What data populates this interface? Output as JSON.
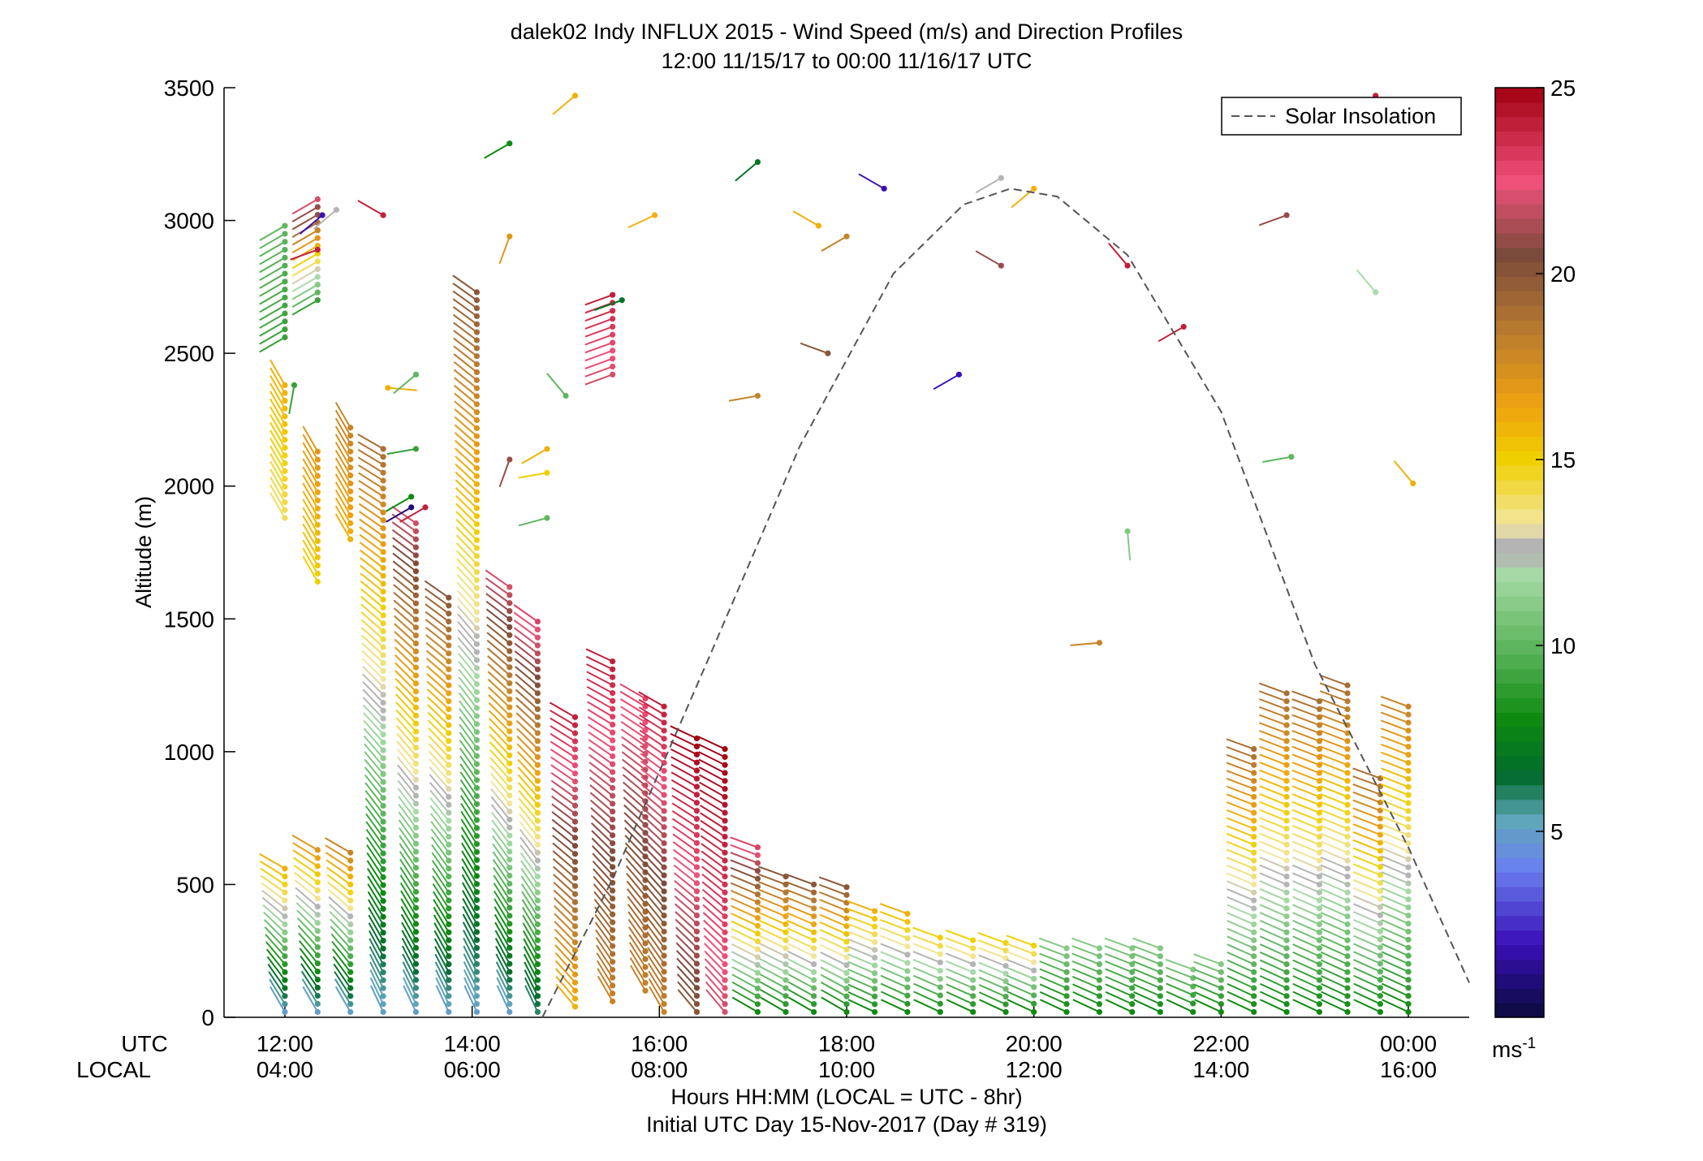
{
  "chart_data": {
    "type": "wind-profile-scatter",
    "title": "dalek02 Indy INFLUX 2015 - Wind Speed (m/s) and Direction Profiles",
    "subtitle": "12:00 11/15/17 to 00:00 11/16/17  UTC",
    "ylabel": "Altitude (m)",
    "xlabel_line1": "Hours HH:MM  (LOCAL = UTC - 8hr)",
    "xlabel_line2": "Initial UTC Day 15-Nov-2017 (Day # 319)",
    "row_label_utc": "UTC",
    "row_label_local": "LOCAL",
    "xlim_hours_utc": [
      11.35,
      24.65
    ],
    "ylim": [
      0,
      3500
    ],
    "y_ticks": [
      "0",
      "500",
      "1000",
      "1500",
      "2000",
      "2500",
      "3000",
      "3500"
    ],
    "x_ticks": [
      {
        "hour": 12,
        "utc": "12:00",
        "local": "04:00"
      },
      {
        "hour": 14,
        "utc": "14:00",
        "local": "06:00"
      },
      {
        "hour": 16,
        "utc": "16:00",
        "local": "08:00"
      },
      {
        "hour": 18,
        "utc": "18:00",
        "local": "10:00"
      },
      {
        "hour": 20,
        "utc": "20:00",
        "local": "12:00"
      },
      {
        "hour": 22,
        "utc": "22:00",
        "local": "14:00"
      },
      {
        "hour": 24,
        "utc": "00:00",
        "local": "16:00"
      }
    ],
    "legend": {
      "label": "Solar Insolation",
      "position": "top-right",
      "style": "dashed",
      "color": "#555555"
    },
    "solar_insolation": {
      "x_hours": [
        14.75,
        15.5,
        16.5,
        17.5,
        18.5,
        19.25,
        19.75,
        20.25,
        21.0,
        22.0,
        23.0,
        24.0,
        24.65
      ],
      "altitude": [
        0,
        520,
        1330,
        2150,
        2800,
        3060,
        3120,
        3090,
        2870,
        2280,
        1330,
        640,
        130
      ]
    },
    "colorbar": {
      "min": 0,
      "max": 25,
      "ticks": [
        "5",
        "10",
        "15",
        "20",
        "25"
      ],
      "unit": "ms-1",
      "unit_base": "ms",
      "unit_exp": "-1",
      "stops": [
        {
          "v": 0,
          "c": "#0a0a3c"
        },
        {
          "v": 2,
          "c": "#3a10b8"
        },
        {
          "v": 4,
          "c": "#6a80f0"
        },
        {
          "v": 5.3,
          "c": "#5fa7ba"
        },
        {
          "v": 6.5,
          "c": "#006b2e"
        },
        {
          "v": 8,
          "c": "#0e8a10"
        },
        {
          "v": 10,
          "c": "#5fb65f"
        },
        {
          "v": 12,
          "c": "#a9dba9"
        },
        {
          "v": 12.4,
          "c": "#b4b4b4"
        },
        {
          "v": 12.8,
          "c": "#b4b4b4"
        },
        {
          "v": 13.2,
          "c": "#f3e7a3"
        },
        {
          "v": 15,
          "c": "#f0d000"
        },
        {
          "v": 16.5,
          "c": "#eea110"
        },
        {
          "v": 18.5,
          "c": "#b87a30"
        },
        {
          "v": 20.5,
          "c": "#7a4a3a"
        },
        {
          "v": 22.5,
          "c": "#f0507a"
        },
        {
          "v": 25,
          "c": "#a00010"
        }
      ]
    },
    "series": [
      {
        "t": 12.0,
        "bottom": 20,
        "top": 560,
        "spd_lo": 5,
        "spd_hi": 16,
        "dir_lo": 330,
        "dir_hi": 300
      },
      {
        "t": 12.0,
        "bottom": 1880,
        "top": 2380,
        "spd_lo": 14,
        "spd_hi": 16,
        "dir_lo": 330,
        "dir_hi": 330
      },
      {
        "t": 12.0,
        "bottom": 2560,
        "top": 2980,
        "spd_lo": 9,
        "spd_hi": 10,
        "dir_lo": 240,
        "dir_hi": 240
      },
      {
        "t": 12.35,
        "bottom": 20,
        "top": 630,
        "spd_lo": 5,
        "spd_hi": 17,
        "dir_lo": 330,
        "dir_hi": 300
      },
      {
        "t": 12.35,
        "bottom": 1640,
        "top": 2130,
        "spd_lo": 15,
        "spd_hi": 17,
        "dir_lo": 330,
        "dir_hi": 330
      },
      {
        "t": 12.35,
        "bottom": 2700,
        "top": 3080,
        "spd_lo": 9,
        "spd_hi": 22,
        "dir_lo": 240,
        "dir_hi": 240
      },
      {
        "t": 12.7,
        "bottom": 20,
        "top": 620,
        "spd_lo": 5,
        "spd_hi": 18,
        "dir_lo": 330,
        "dir_hi": 300
      },
      {
        "t": 12.7,
        "bottom": 1800,
        "top": 2220,
        "spd_lo": 16,
        "spd_hi": 18,
        "dir_lo": 330,
        "dir_hi": 330
      },
      {
        "t": 13.05,
        "bottom": 20,
        "top": 2140,
        "spd_lo": 5,
        "spd_hi": 19,
        "dir_lo": 335,
        "dir_hi": 300
      },
      {
        "t": 13.4,
        "bottom": 20,
        "top": 1860,
        "spd_lo": 5,
        "spd_hi": 22,
        "dir_lo": 335,
        "dir_hi": 305
      },
      {
        "t": 13.75,
        "bottom": 20,
        "top": 1580,
        "spd_lo": 5,
        "spd_hi": 20,
        "dir_lo": 335,
        "dir_hi": 305
      },
      {
        "t": 14.05,
        "bottom": 20,
        "top": 2730,
        "spd_lo": 5,
        "spd_hi": 20,
        "dir_lo": 335,
        "dir_hi": 305
      },
      {
        "t": 14.4,
        "bottom": 20,
        "top": 1620,
        "spd_lo": 5,
        "spd_hi": 22,
        "dir_lo": 335,
        "dir_hi": 305
      },
      {
        "t": 14.7,
        "bottom": 20,
        "top": 1490,
        "spd_lo": 6,
        "spd_hi": 23,
        "dir_lo": 335,
        "dir_hi": 305
      },
      {
        "t": 15.1,
        "bottom": 40,
        "top": 1130,
        "spd_lo": 16,
        "spd_hi": 24,
        "dir_lo": 320,
        "dir_hi": 300
      },
      {
        "t": 15.5,
        "bottom": 60,
        "top": 1340,
        "spd_lo": 18,
        "spd_hi": 24,
        "dir_lo": 330,
        "dir_hi": 295
      },
      {
        "t": 15.5,
        "bottom": 2420,
        "top": 2720,
        "spd_lo": 22,
        "spd_hi": 24,
        "dir_lo": 250,
        "dir_hi": 250
      },
      {
        "t": 15.85,
        "bottom": 100,
        "top": 1200,
        "spd_lo": 18,
        "spd_hi": 23,
        "dir_lo": 330,
        "dir_hi": 300
      },
      {
        "t": 16.05,
        "bottom": 20,
        "top": 1170,
        "spd_lo": 18,
        "spd_hi": 24,
        "dir_lo": 330,
        "dir_hi": 300
      },
      {
        "t": 16.4,
        "bottom": 20,
        "top": 1050,
        "spd_lo": 20,
        "spd_hi": 25,
        "dir_lo": 320,
        "dir_hi": 295
      },
      {
        "t": 16.7,
        "bottom": 20,
        "top": 1010,
        "spd_lo": 22,
        "spd_hi": 25,
        "dir_lo": 320,
        "dir_hi": 295
      },
      {
        "t": 17.05,
        "bottom": 20,
        "top": 640,
        "spd_lo": 8,
        "spd_hi": 23,
        "dir_lo": 300,
        "dir_hi": 290
      },
      {
        "t": 17.35,
        "bottom": 20,
        "top": 530,
        "spd_lo": 8,
        "spd_hi": 20,
        "dir_lo": 300,
        "dir_hi": 290
      },
      {
        "t": 17.65,
        "bottom": 20,
        "top": 500,
        "spd_lo": 8,
        "spd_hi": 20,
        "dir_lo": 300,
        "dir_hi": 290
      },
      {
        "t": 18.0,
        "bottom": 20,
        "top": 490,
        "spd_lo": 8,
        "spd_hi": 20,
        "dir_lo": 300,
        "dir_hi": 290
      },
      {
        "t": 18.3,
        "bottom": 20,
        "top": 400,
        "spd_lo": 8,
        "spd_hi": 16,
        "dir_lo": 295,
        "dir_hi": 290
      },
      {
        "t": 18.65,
        "bottom": 20,
        "top": 390,
        "spd_lo": 8,
        "spd_hi": 16,
        "dir_lo": 295,
        "dir_hi": 290
      },
      {
        "t": 19.0,
        "bottom": 20,
        "top": 300,
        "spd_lo": 8,
        "spd_hi": 15,
        "dir_lo": 295,
        "dir_hi": 290
      },
      {
        "t": 19.35,
        "bottom": 20,
        "top": 290,
        "spd_lo": 8,
        "spd_hi": 15,
        "dir_lo": 295,
        "dir_hi": 290
      },
      {
        "t": 19.7,
        "bottom": 20,
        "top": 280,
        "spd_lo": 8,
        "spd_hi": 15,
        "dir_lo": 295,
        "dir_hi": 290
      },
      {
        "t": 20.0,
        "bottom": 20,
        "top": 270,
        "spd_lo": 8,
        "spd_hi": 15,
        "dir_lo": 295,
        "dir_hi": 290
      },
      {
        "t": 20.35,
        "bottom": 20,
        "top": 260,
        "spd_lo": 8,
        "spd_hi": 11,
        "dir_lo": 295,
        "dir_hi": 290
      },
      {
        "t": 20.7,
        "bottom": 20,
        "top": 260,
        "spd_lo": 8,
        "spd_hi": 11,
        "dir_lo": 295,
        "dir_hi": 290
      },
      {
        "t": 21.05,
        "bottom": 20,
        "top": 260,
        "spd_lo": 8,
        "spd_hi": 11,
        "dir_lo": 295,
        "dir_hi": 290
      },
      {
        "t": 21.35,
        "bottom": 20,
        "top": 260,
        "spd_lo": 8,
        "spd_hi": 11,
        "dir_lo": 295,
        "dir_hi": 290
      },
      {
        "t": 21.7,
        "bottom": 20,
        "top": 180,
        "spd_lo": 8,
        "spd_hi": 11,
        "dir_lo": 295,
        "dir_hi": 290
      },
      {
        "t": 22.0,
        "bottom": 20,
        "top": 200,
        "spd_lo": 8,
        "spd_hi": 11,
        "dir_lo": 295,
        "dir_hi": 290
      },
      {
        "t": 22.35,
        "bottom": 20,
        "top": 1010,
        "spd_lo": 8,
        "spd_hi": 19,
        "dir_lo": 295,
        "dir_hi": 290
      },
      {
        "t": 22.7,
        "bottom": 20,
        "top": 1220,
        "spd_lo": 8,
        "spd_hi": 19,
        "dir_lo": 295,
        "dir_hi": 290
      },
      {
        "t": 23.05,
        "bottom": 20,
        "top": 1190,
        "spd_lo": 8,
        "spd_hi": 19,
        "dir_lo": 295,
        "dir_hi": 290
      },
      {
        "t": 23.35,
        "bottom": 20,
        "top": 1250,
        "spd_lo": 8,
        "spd_hi": 19,
        "dir_lo": 295,
        "dir_hi": 290
      },
      {
        "t": 23.7,
        "bottom": 20,
        "top": 900,
        "spd_lo": 8,
        "spd_hi": 19,
        "dir_lo": 295,
        "dir_hi": 290
      },
      {
        "t": 24.0,
        "bottom": 20,
        "top": 1170,
        "spd_lo": 8,
        "spd_hi": 18,
        "dir_lo": 295,
        "dir_hi": 290
      }
    ],
    "scattered": [
      {
        "t": 12.1,
        "alt": 2380,
        "spd": 9,
        "dir": 190
      },
      {
        "t": 12.35,
        "alt": 2890,
        "spd": 24,
        "dir": 250
      },
      {
        "t": 12.4,
        "alt": 3020,
        "spd": 2,
        "dir": 230
      },
      {
        "t": 12.55,
        "alt": 3040,
        "spd": 12.5,
        "dir": 230
      },
      {
        "t": 13.05,
        "alt": 3020,
        "spd": 24,
        "dir": 300
      },
      {
        "t": 13.1,
        "alt": 2370,
        "spd": 16,
        "dir": 95
      },
      {
        "t": 13.4,
        "alt": 2420,
        "spd": 10,
        "dir": 230
      },
      {
        "t": 13.4,
        "alt": 2140,
        "spd": 9,
        "dir": 260
      },
      {
        "t": 13.35,
        "alt": 1920,
        "spd": 1,
        "dir": 240
      },
      {
        "t": 13.35,
        "alt": 1960,
        "spd": 8,
        "dir": 240
      },
      {
        "t": 13.5,
        "alt": 1920,
        "spd": 24,
        "dir": 240
      },
      {
        "t": 14.4,
        "alt": 3290,
        "spd": 8,
        "dir": 240
      },
      {
        "t": 14.4,
        "alt": 2940,
        "spd": 17,
        "dir": 200
      },
      {
        "t": 14.4,
        "alt": 2100,
        "spd": 21,
        "dir": 200
      },
      {
        "t": 14.8,
        "alt": 2140,
        "spd": 16,
        "dir": 240
      },
      {
        "t": 14.8,
        "alt": 2050,
        "spd": 15,
        "dir": 260
      },
      {
        "t": 14.8,
        "alt": 1880,
        "spd": 10,
        "dir": 255
      },
      {
        "t": 15.1,
        "alt": 3470,
        "spd": 16,
        "dir": 230
      },
      {
        "t": 15.0,
        "alt": 2340,
        "spd": 10,
        "dir": 320
      },
      {
        "t": 15.6,
        "alt": 2700,
        "spd": 7,
        "dir": 250
      },
      {
        "t": 15.95,
        "alt": 3020,
        "spd": 16,
        "dir": 245
      },
      {
        "t": 17.05,
        "alt": 3220,
        "spd": 7,
        "dir": 230
      },
      {
        "t": 17.05,
        "alt": 2340,
        "spd": 18,
        "dir": 260
      },
      {
        "t": 17.7,
        "alt": 2980,
        "spd": 16,
        "dir": 300
      },
      {
        "t": 17.8,
        "alt": 2500,
        "spd": 20,
        "dir": 290
      },
      {
        "t": 18.0,
        "alt": 2940,
        "spd": 18,
        "dir": 240
      },
      {
        "t": 18.4,
        "alt": 3120,
        "spd": 2,
        "dir": 300
      },
      {
        "t": 19.2,
        "alt": 2420,
        "spd": 2,
        "dir": 240
      },
      {
        "t": 19.65,
        "alt": 2830,
        "spd": 21,
        "dir": 300
      },
      {
        "t": 19.65,
        "alt": 3160,
        "spd": 12.5,
        "dir": 240
      },
      {
        "t": 20.0,
        "alt": 3120,
        "spd": 16,
        "dir": 230
      },
      {
        "t": 20.7,
        "alt": 1410,
        "spd": 18,
        "dir": 265
      },
      {
        "t": 21.0,
        "alt": 2830,
        "spd": 24,
        "dir": 320
      },
      {
        "t": 21.0,
        "alt": 1830,
        "spd": 11,
        "dir": 175
      },
      {
        "t": 21.6,
        "alt": 2600,
        "spd": 24,
        "dir": 240
      },
      {
        "t": 22.7,
        "alt": 3020,
        "spd": 21,
        "dir": 250
      },
      {
        "t": 22.75,
        "alt": 2110,
        "spd": 10,
        "dir": 260
      },
      {
        "t": 23.65,
        "alt": 2730,
        "spd": 12,
        "dir": 320
      },
      {
        "t": 23.65,
        "alt": 3470,
        "spd": 24,
        "dir": 230
      },
      {
        "t": 24.05,
        "alt": 2010,
        "spd": 16,
        "dir": 320
      }
    ]
  }
}
